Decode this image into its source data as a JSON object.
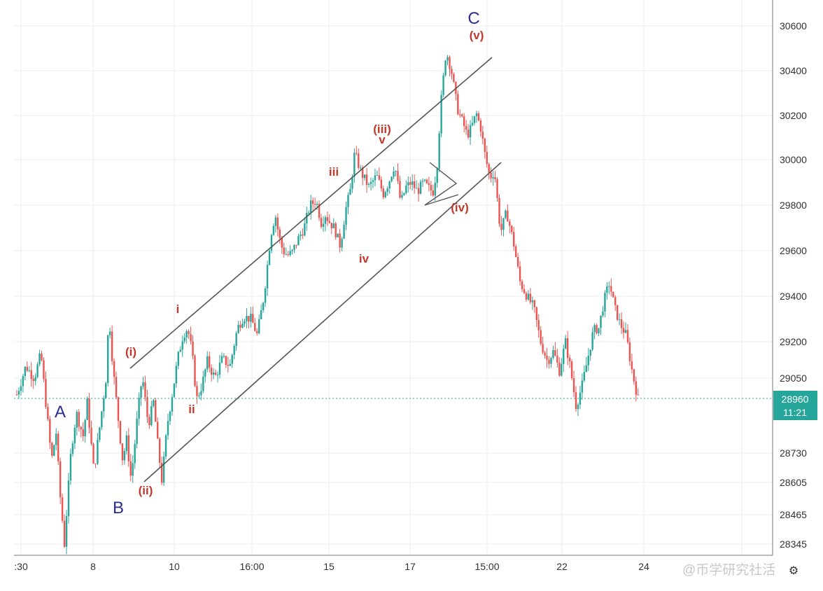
{
  "chart_data": {
    "type": "line",
    "title": "",
    "xlabel": "",
    "ylabel": "",
    "x_tick_labels": [
      ":30",
      "8",
      "10",
      "16:00",
      "15",
      "17",
      "15:00",
      "22",
      "24"
    ],
    "y_tick_labels": [
      30600,
      30400,
      30200,
      30000,
      29800,
      29600,
      29400,
      29200,
      29050,
      28730,
      28605,
      28465,
      28345
    ],
    "ylim": [
      28320,
      30650
    ],
    "grid": true,
    "series": [
      {
        "x": [
          0.0,
          0.012,
          0.023,
          0.032,
          0.046,
          0.052,
          0.057,
          0.063,
          0.072,
          0.079,
          0.088,
          0.093,
          0.102,
          0.11,
          0.118,
          0.122,
          0.127,
          0.135,
          0.14,
          0.146,
          0.15,
          0.154,
          0.16,
          0.166,
          0.174,
          0.181,
          0.186,
          0.192,
          0.199,
          0.206,
          0.213,
          0.22,
          0.226,
          0.232,
          0.238,
          0.245,
          0.252,
          0.262,
          0.272,
          0.282,
          0.292,
          0.3,
          0.31,
          0.318,
          0.327,
          0.336,
          0.342,
          0.347,
          0.352,
          0.358,
          0.364,
          0.372,
          0.38,
          0.388,
          0.396,
          0.403,
          0.408,
          0.413,
          0.42,
          0.428,
          0.435,
          0.441,
          0.447,
          0.456,
          0.466,
          0.476,
          0.485,
          0.492,
          0.5,
          0.508,
          0.515,
          0.522,
          0.53,
          0.538,
          0.546,
          0.551,
          0.556,
          0.561,
          0.568,
          0.575,
          0.583,
          0.59,
          0.596,
          0.602,
          0.608,
          0.614,
          0.62,
          0.626,
          0.632,
          0.64,
          0.648,
          0.657,
          0.666,
          0.675,
          0.684,
          0.693,
          0.702,
          0.71,
          0.718,
          0.726,
          0.733,
          0.74,
          0.748,
          0.756,
          0.763,
          0.77,
          0.777,
          0.784,
          0.791,
          0.798,
          0.806,
          0.814,
          0.822
        ],
        "values": [
          28980,
          29100,
          29050,
          29150,
          28700,
          28820,
          28560,
          28345,
          28750,
          28900,
          28800,
          28950,
          28650,
          28850,
          29050,
          29320,
          29100,
          28850,
          28700,
          28800,
          28620,
          28700,
          28900,
          29060,
          28850,
          28950,
          28780,
          28610,
          28850,
          28990,
          29130,
          29230,
          29260,
          29150,
          28960,
          29020,
          29120,
          29050,
          29130,
          29100,
          29260,
          29310,
          29300,
          29230,
          29400,
          29670,
          29760,
          29660,
          29600,
          29580,
          29590,
          29650,
          29700,
          29800,
          29820,
          29720,
          29760,
          29730,
          29700,
          29620,
          29780,
          29860,
          30030,
          29940,
          29880,
          29930,
          29850,
          29900,
          29980,
          29810,
          29880,
          29900,
          29860,
          29900,
          29870,
          29860,
          29970,
          30250,
          30490,
          30400,
          30230,
          30170,
          30110,
          30150,
          30210,
          30140,
          30010,
          29920,
          29950,
          29680,
          29770,
          29640,
          29460,
          29400,
          29350,
          29200,
          29120,
          29160,
          29080,
          29200,
          29080,
          28930,
          29020,
          29140,
          29250,
          29260,
          29380,
          29460,
          29350,
          29280,
          29230,
          29080,
          28960
        ]
      }
    ],
    "annotations": {
      "major": [
        "A",
        "B",
        "C"
      ],
      "minor": [
        "(i)",
        "i",
        "ii",
        "(ii)",
        "iii",
        "(iii)",
        "v",
        "iv",
        "(iv)",
        "(v)"
      ]
    },
    "price_badge": {
      "price": "28960",
      "time": "11:21",
      "color": "#26a69a"
    },
    "colors": {
      "up": "#26a69a",
      "down": "#ef5350",
      "major_label": "#2a2e8c",
      "minor_label": "#c0392b"
    },
    "watermark": "@币学研究社活"
  }
}
